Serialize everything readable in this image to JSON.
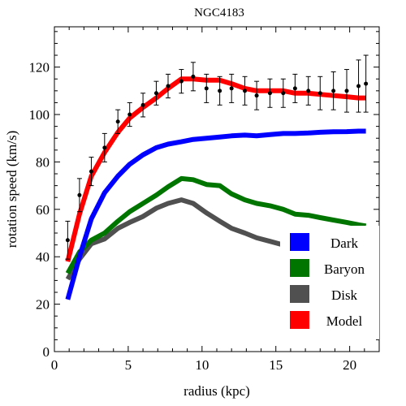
{
  "chart_data": {
    "type": "line",
    "title": "NGC4183",
    "xlabel": "radius (kpc)",
    "ylabel": "rotation speed (km/s)",
    "xlim": [
      0,
      22
    ],
    "ylim": [
      0,
      137
    ],
    "xticks": [
      0,
      5,
      10,
      15,
      20
    ],
    "yticks": [
      0,
      20,
      40,
      60,
      80,
      100,
      120
    ],
    "grid": false,
    "legend_position": "bottom-right",
    "series": [
      {
        "name": "Dark",
        "color": "#0000ff",
        "x": [
          0.9,
          1.7,
          2.5,
          3.4,
          4.3,
          5.1,
          6.0,
          6.9,
          7.7,
          8.6,
          9.4,
          10.3,
          11.2,
          12.0,
          12.9,
          13.7,
          14.6,
          15.5,
          16.3,
          17.2,
          18.0,
          18.9,
          19.8,
          20.6,
          21.1
        ],
        "y": [
          22,
          40,
          56,
          67,
          74,
          79,
          83,
          86,
          87.5,
          88.5,
          89.5,
          90,
          90.5,
          91,
          91.3,
          91,
          91.5,
          92,
          92,
          92.2,
          92.5,
          92.7,
          92.8,
          93,
          93
        ]
      },
      {
        "name": "Baryon",
        "color": "#007500",
        "x": [
          0.9,
          1.7,
          2.5,
          3.4,
          4.3,
          5.1,
          6.0,
          6.9,
          7.7,
          8.6,
          9.4,
          10.3,
          11.2,
          12.0,
          12.9,
          13.7,
          14.6,
          15.5,
          16.3,
          17.2,
          18.0,
          18.9,
          19.8,
          20.6,
          21.1
        ],
        "y": [
          33,
          42,
          47,
          50,
          55,
          59,
          62.5,
          66,
          69.5,
          73,
          72.5,
          70.5,
          70,
          66.5,
          64,
          62.5,
          61.5,
          60,
          58,
          57.5,
          56.5,
          55.5,
          54.5,
          53.5,
          53
        ]
      },
      {
        "name": "Disk",
        "color": "#505050",
        "x": [
          0.9,
          1.7,
          2.5,
          3.4,
          4.3,
          5.1,
          6.0,
          6.9,
          7.7,
          8.6,
          9.4,
          10.3,
          11.2,
          12.0,
          12.9,
          13.7,
          14.6,
          15.5,
          16.3,
          17.2,
          18.0,
          18.9,
          19.8,
          20.6,
          21.1
        ],
        "y": [
          30.5,
          39,
          45.5,
          47.5,
          52,
          54.5,
          57,
          60.5,
          62.5,
          64,
          62.5,
          58.5,
          55,
          52,
          50,
          48,
          46.5,
          45,
          44,
          43,
          42,
          41,
          40.5,
          40,
          39.5
        ]
      },
      {
        "name": "Model",
        "color": "#ff0000",
        "x": [
          0.9,
          1.7,
          2.5,
          3.4,
          4.3,
          5.1,
          6.0,
          6.9,
          7.7,
          8.6,
          9.4,
          10.3,
          11.2,
          12.0,
          12.9,
          13.7,
          14.6,
          15.5,
          16.3,
          17.2,
          18.0,
          18.9,
          19.8,
          20.6,
          21.1
        ],
        "y": [
          38,
          58,
          74,
          84,
          92.5,
          98.5,
          103,
          107,
          111,
          115,
          115,
          114.5,
          114.5,
          113,
          111,
          110,
          110,
          110,
          109,
          109,
          108.5,
          108,
          107.5,
          107,
          107
        ]
      }
    ],
    "observations": {
      "x": [
        0.9,
        1.7,
        2.5,
        3.4,
        4.3,
        5.1,
        6.0,
        6.9,
        7.7,
        8.6,
        9.4,
        10.3,
        11.2,
        12.0,
        12.9,
        13.7,
        14.6,
        15.5,
        16.3,
        17.2,
        18.0,
        18.9,
        19.8,
        20.6,
        21.1
      ],
      "y": [
        47,
        66,
        76,
        86,
        97,
        100,
        104,
        109,
        112,
        114,
        116,
        111,
        110,
        111,
        110,
        108,
        109,
        109,
        111,
        110,
        109,
        110,
        110,
        112,
        113
      ],
      "err": [
        8,
        7,
        6,
        6,
        5,
        5,
        5,
        5,
        5,
        5,
        6,
        6,
        6,
        6,
        6,
        6,
        6,
        6,
        6,
        6,
        7,
        8,
        9,
        11,
        12
      ]
    }
  }
}
